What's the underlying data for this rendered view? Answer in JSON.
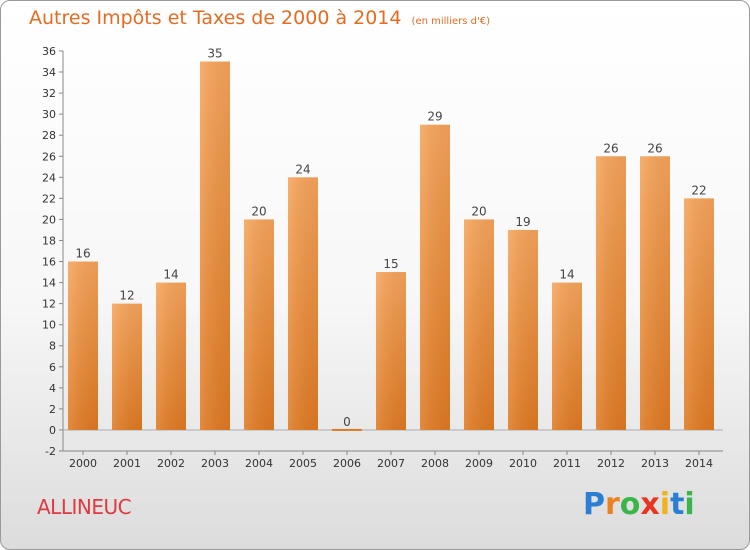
{
  "page": {
    "title": "Autres Impôts et Taxes de 2000 à 2014",
    "title_unit": "(en milliers d'€)",
    "commune": "ALLINEUC",
    "logo_text": "Proxiti"
  },
  "colors": {
    "title": "#e86a1f",
    "bar_top": "#f7a45a",
    "bar_bottom": "#e07a22",
    "commune": "#e0393e"
  },
  "chart_data": {
    "type": "bar",
    "title": "Autres Impôts et Taxes de 2000 à 2014",
    "subtitle": "(en milliers d'€)",
    "categories": [
      "2000",
      "2001",
      "2002",
      "2003",
      "2004",
      "2005",
      "2006",
      "2007",
      "2008",
      "2009",
      "2010",
      "2011",
      "2012",
      "2013",
      "2014"
    ],
    "values": [
      16,
      12,
      14,
      35,
      20,
      24,
      0,
      15,
      29,
      20,
      19,
      14,
      26,
      26,
      22
    ],
    "ylim": [
      -2,
      36
    ],
    "yticks": [
      -2,
      0,
      2,
      4,
      6,
      8,
      10,
      12,
      14,
      16,
      18,
      20,
      22,
      24,
      26,
      28,
      30,
      32,
      34,
      36
    ],
    "grid": false,
    "xlabel": "",
    "ylabel": ""
  }
}
